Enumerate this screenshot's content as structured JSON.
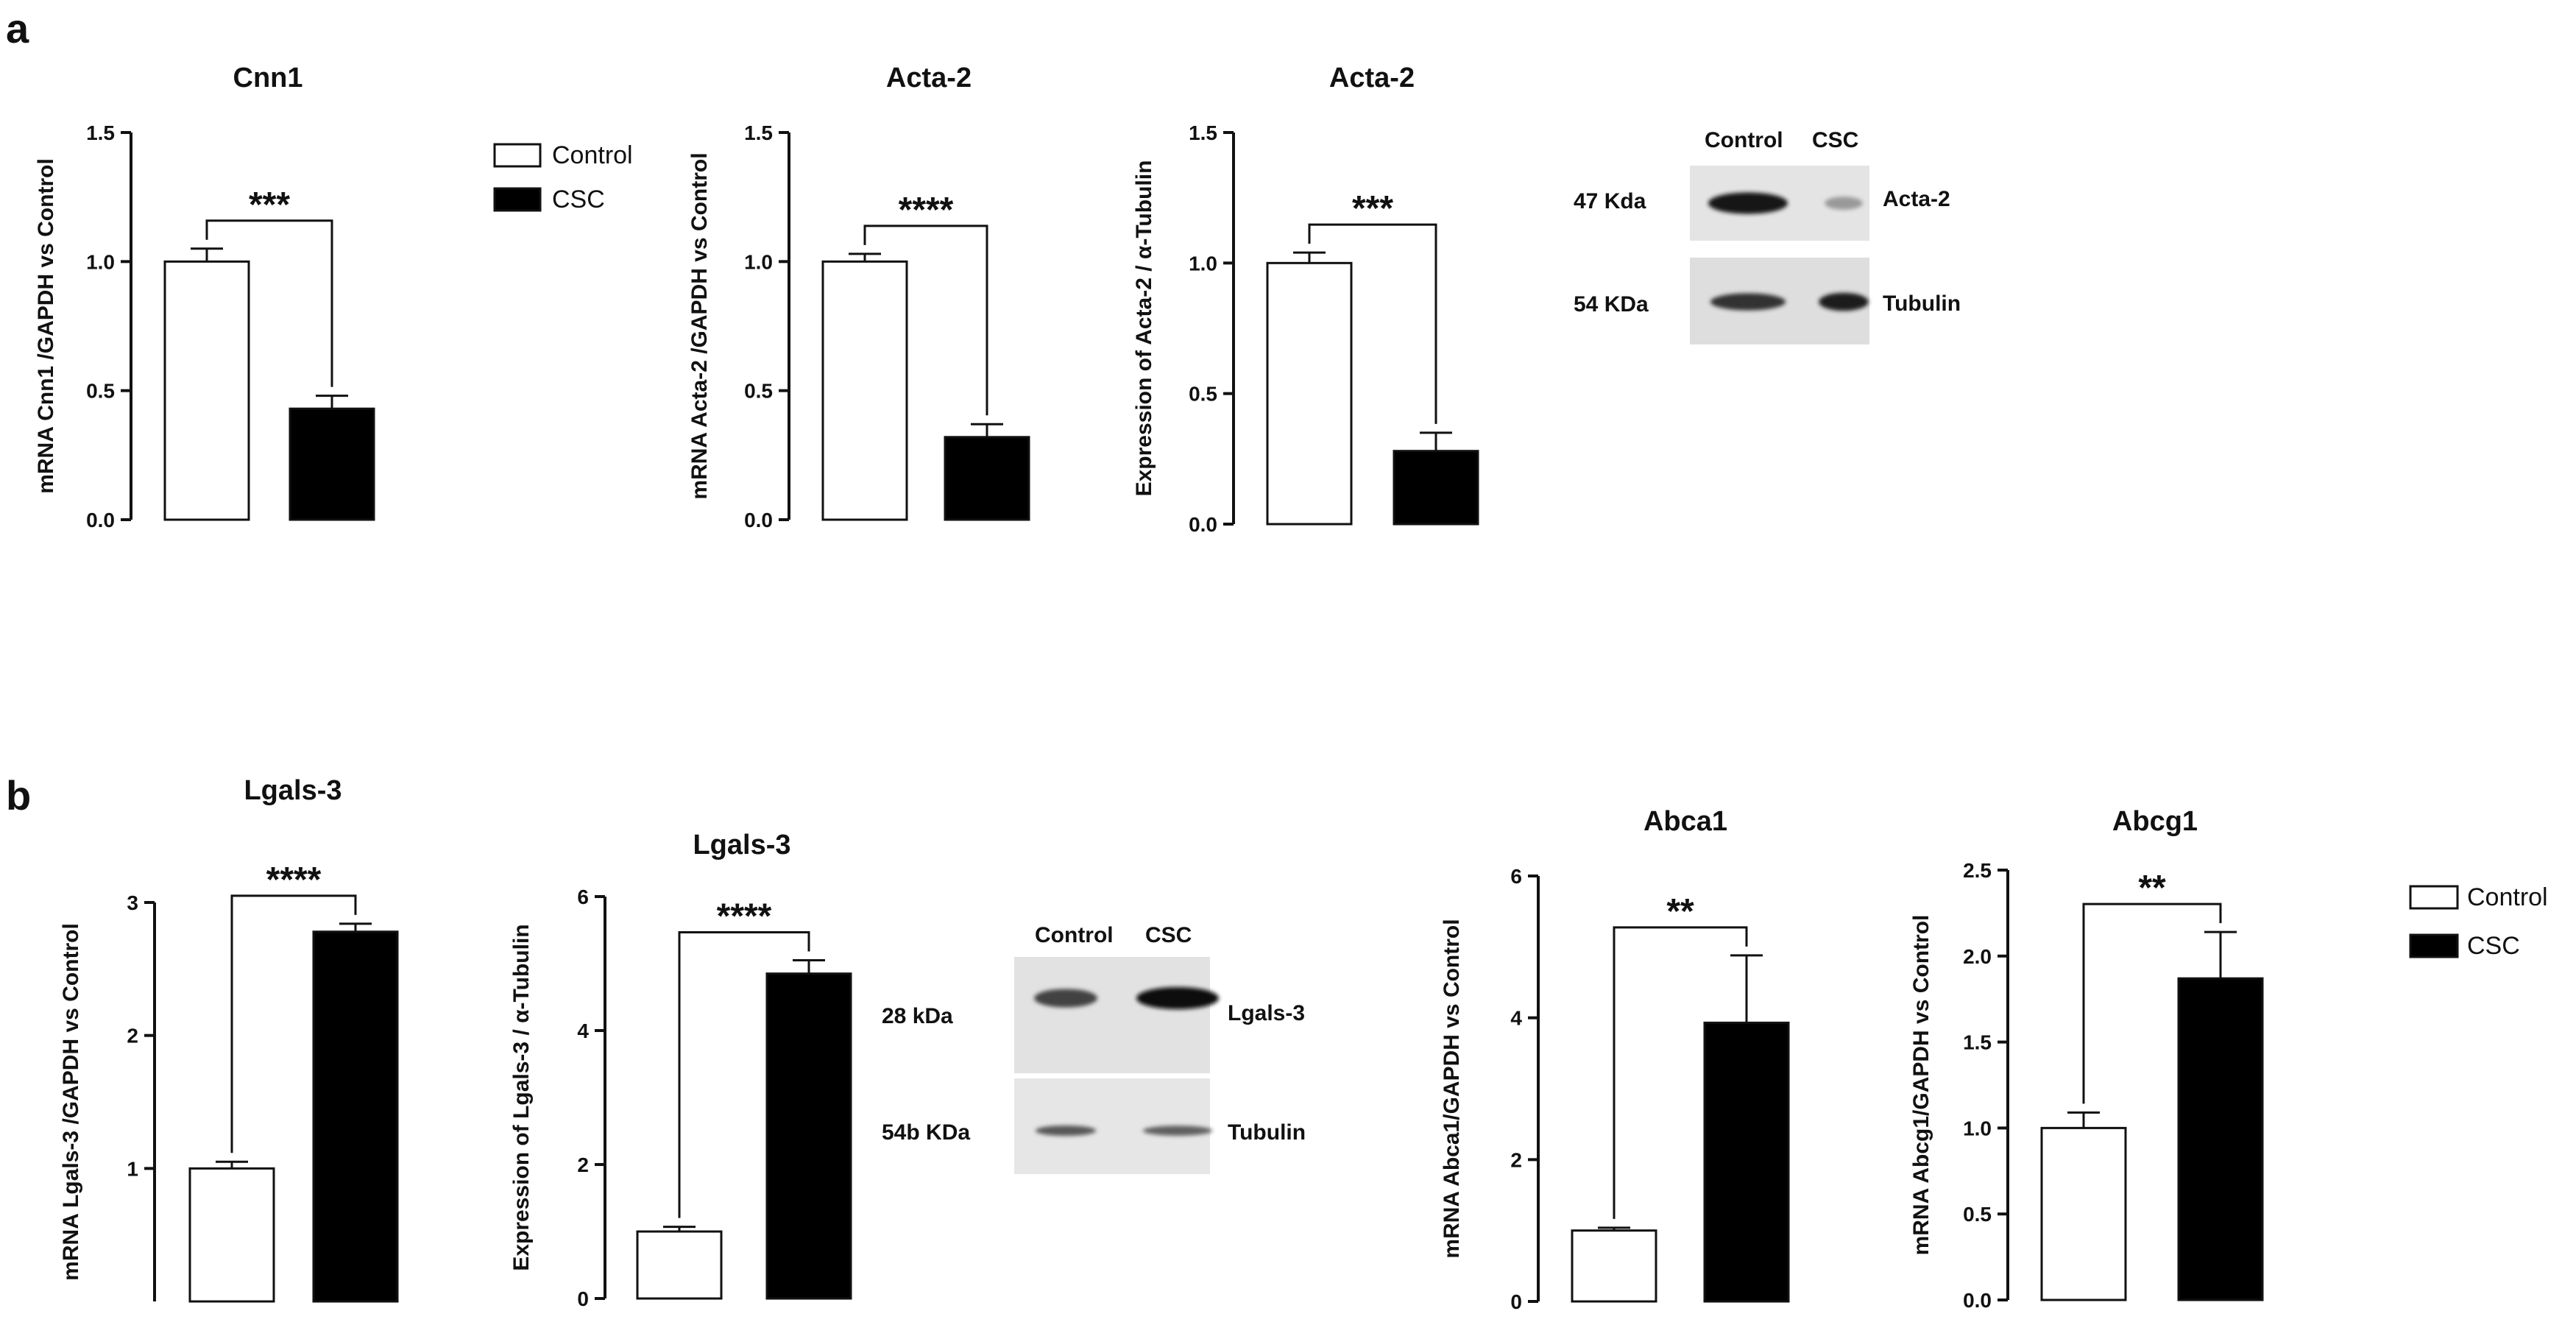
{
  "panel_labels": [
    "a",
    "b"
  ],
  "legend": {
    "entries": [
      {
        "label": "Control",
        "color": "#ffffff"
      },
      {
        "label": "CSC",
        "color": "#000000"
      }
    ]
  },
  "chart_data": [
    {
      "id": "cnn1",
      "type": "bar",
      "title": "Cnn1",
      "ylabel": "mRNA Cnn1 /GAPDH vs Control",
      "categories": [
        "Control",
        "CSC"
      ],
      "values": [
        1.0,
        0.43
      ],
      "errors": [
        0.05,
        0.05
      ],
      "ylim": [
        0,
        1.5
      ],
      "yticks": [
        0.0,
        0.5,
        1.0,
        1.5
      ],
      "tick_decimals": 1,
      "significance": "***"
    },
    {
      "id": "acta2-mrna",
      "type": "bar",
      "title": "Acta-2",
      "ylabel": "mRNA Acta-2 /GAPDH vs Control",
      "categories": [
        "Control",
        "CSC"
      ],
      "values": [
        1.0,
        0.32
      ],
      "errors": [
        0.03,
        0.05
      ],
      "ylim": [
        0,
        1.5
      ],
      "yticks": [
        0.0,
        0.5,
        1.0,
        1.5
      ],
      "tick_decimals": 1,
      "significance": "****"
    },
    {
      "id": "acta2-protein",
      "type": "bar",
      "title": "Acta-2",
      "ylabel": "Expression of Acta-2 / α-Tubulin",
      "categories": [
        "Control",
        "CSC"
      ],
      "values": [
        1.0,
        0.28
      ],
      "errors": [
        0.04,
        0.07
      ],
      "ylim": [
        0,
        1.5
      ],
      "yticks": [
        0.0,
        0.5,
        1.0,
        1.5
      ],
      "tick_decimals": 1,
      "significance": "***"
    },
    {
      "id": "lgals3-mrna",
      "type": "bar",
      "title": "Lgals-3",
      "ylabel": "mRNA Lgals-3 /GAPDH vs Control",
      "categories": [
        "Control",
        "CSC"
      ],
      "values": [
        1.0,
        2.78
      ],
      "errors": [
        0.05,
        0.06
      ],
      "ylim": [
        0,
        3
      ],
      "yticks": [
        1,
        2,
        3
      ],
      "tick_decimals": 0,
      "significance": "****"
    },
    {
      "id": "lgals3-protein",
      "type": "bar",
      "title": "Lgals-3",
      "ylabel": "Expression of Lgals-3 / α-Tubulin",
      "categories": [
        "Control",
        "CSC"
      ],
      "values": [
        1.0,
        4.85
      ],
      "errors": [
        0.07,
        0.2
      ],
      "ylim": [
        0,
        6
      ],
      "yticks": [
        0,
        2,
        4,
        6
      ],
      "tick_decimals": 0,
      "significance": "****"
    },
    {
      "id": "abca1",
      "type": "bar",
      "title": "Abca1",
      "ylabel": "mRNA Abca1/GAPDH vs Control",
      "categories": [
        "Control",
        "CSC"
      ],
      "values": [
        1.0,
        3.93
      ],
      "errors": [
        0.04,
        0.95
      ],
      "ylim": [
        0,
        6
      ],
      "yticks": [
        0,
        2,
        4,
        6
      ],
      "tick_decimals": 0,
      "significance": "**"
    },
    {
      "id": "abcg1",
      "type": "bar",
      "title": "Abcg1",
      "ylabel": "mRNA Abcg1/GAPDH vs Control",
      "categories": [
        "Control",
        "CSC"
      ],
      "values": [
        1.0,
        1.87
      ],
      "errors": [
        0.09,
        0.27
      ],
      "ylim": [
        0,
        2.5
      ],
      "yticks": [
        0.0,
        0.5,
        1.0,
        1.5,
        2.0,
        2.5
      ],
      "tick_decimals": 1,
      "significance": "**"
    }
  ],
  "blots": [
    {
      "id": "blot-a",
      "lanes": [
        "Control",
        "CSC"
      ],
      "bands": [
        {
          "weight": "47 Kda",
          "protein": "Acta-2",
          "intensity": [
            0.95,
            0.25
          ]
        },
        {
          "weight": "54 KDa",
          "protein": "Tubulin",
          "intensity": [
            0.8,
            0.9
          ]
        }
      ]
    },
    {
      "id": "blot-b",
      "lanes": [
        "Control",
        "CSC"
      ],
      "bands": [
        {
          "weight": "28 kDa",
          "protein": "Lgals-3",
          "intensity": [
            0.7,
            1.0
          ]
        },
        {
          "weight": "54b KDa",
          "protein": "Tubulin",
          "intensity": [
            0.6,
            0.55
          ]
        }
      ]
    }
  ]
}
